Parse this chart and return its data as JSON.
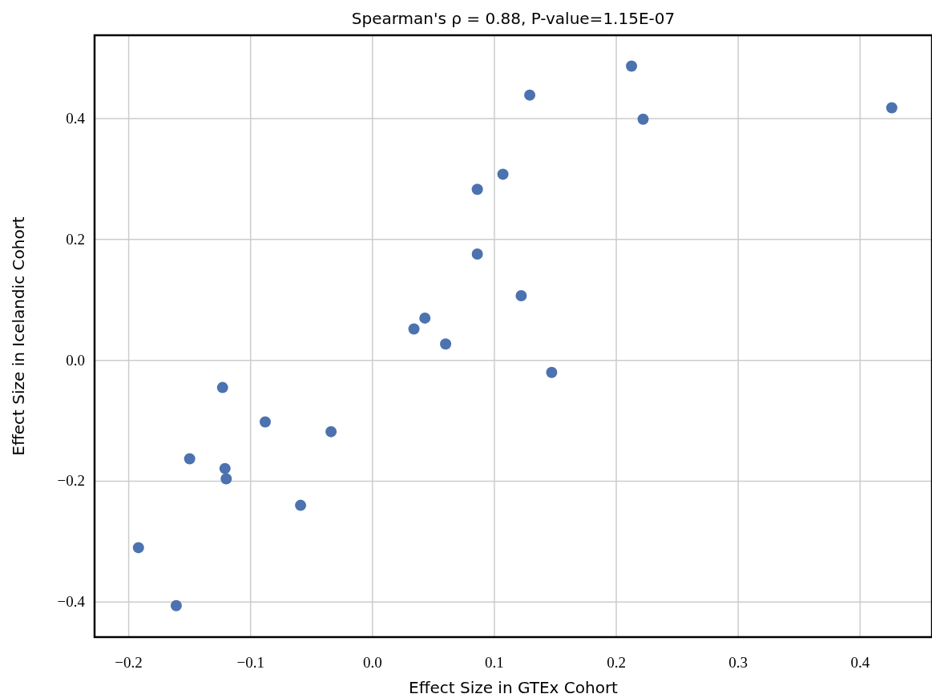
{
  "chart_data": {
    "type": "scatter",
    "title": "Spearman's ρ = 0.88, P-value=1.15E-07",
    "xlabel": "Effect Size in GTEx Cohort",
    "ylabel": "Effect Size in Icelandic Cohort",
    "x": [
      0.2125,
      0.129,
      0.222,
      0.426,
      0.107,
      0.086,
      0.086,
      0.122,
      0.043,
      0.034,
      0.06,
      0.147,
      -0.123,
      -0.088,
      -0.034,
      -0.15,
      -0.121,
      -0.12,
      -0.059,
      -0.192,
      -0.161
    ],
    "series": [
      {
        "color": "#4c72b0",
        "values": [
          0.487,
          0.439,
          0.399,
          0.418,
          0.308,
          0.283,
          0.176,
          0.107,
          0.07,
          0.052,
          0.027,
          -0.02,
          -0.045,
          -0.102,
          -0.118,
          -0.163,
          -0.179,
          -0.196,
          -0.24,
          -0.31,
          -0.406
        ]
      }
    ],
    "xlim": [
      -0.228,
      0.459
    ],
    "ylim": [
      -0.458,
      0.538
    ],
    "xticks": [
      {
        "value": -0.2,
        "label": "−0.2"
      },
      {
        "value": -0.1,
        "label": "−0.1"
      },
      {
        "value": 0,
        "label": "0.0"
      },
      0.1,
      0.2,
      0.3,
      0.4
    ],
    "yticks": [
      {
        "value": -0.4,
        "label": "−0.4"
      },
      {
        "value": -0.2,
        "label": "−0.2"
      },
      {
        "value": 0,
        "label": "0.0"
      },
      0.2,
      0.4
    ],
    "grid": true,
    "marker": "circle"
  }
}
